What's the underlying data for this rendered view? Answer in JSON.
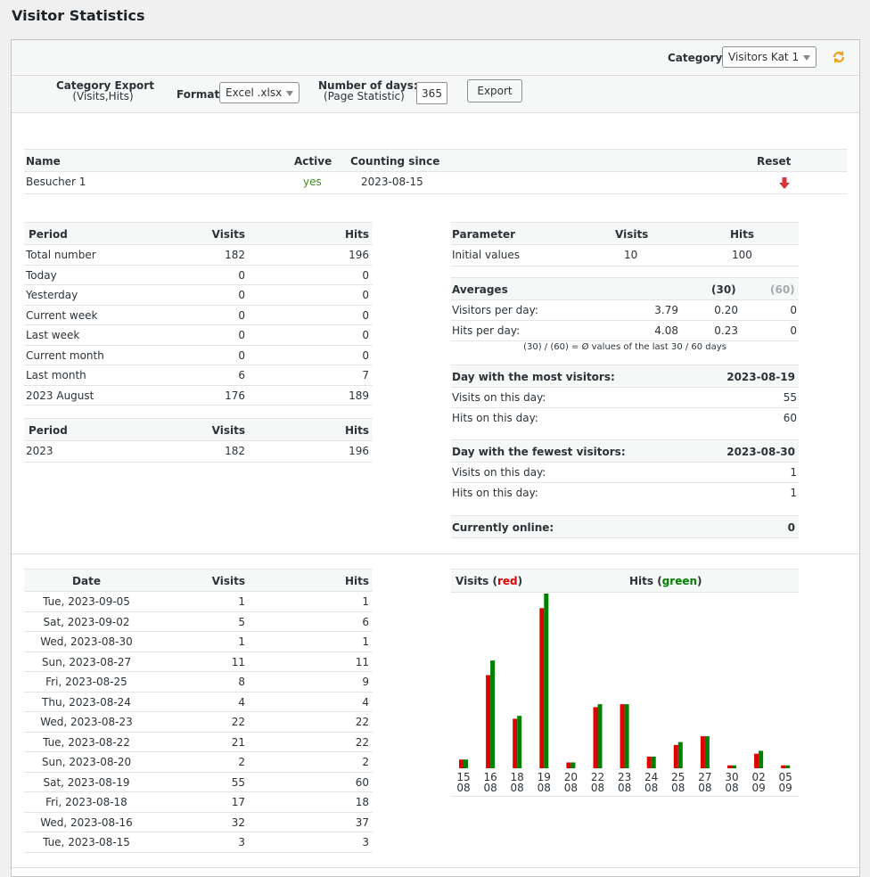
{
  "page": {
    "title": "Visitor Statistics"
  },
  "toolbar": {
    "category_label": "Category:",
    "category_value": "Visitors Kat 1",
    "export_title_line1": "Category Export",
    "export_title_line2": "(Visits,Hits)",
    "format_label": "Format:",
    "format_value": "Excel .xlsx",
    "days_label_line1": "Number of days:",
    "days_label_line2": "(Page Statistic)",
    "days_value": "365",
    "export_button": "Export"
  },
  "counter_table": {
    "headers": {
      "name": "Name",
      "active": "Active",
      "since": "Counting since",
      "reset": "Reset"
    },
    "row": {
      "name": "Besucher 1",
      "active": "yes",
      "since": "2023-08-15"
    }
  },
  "period_table": {
    "headers": {
      "period": "Period",
      "visits": "Visits",
      "hits": "Hits"
    },
    "rows": [
      {
        "period": "Total number",
        "visits": "182",
        "hits": "196"
      },
      {
        "period": "Today",
        "visits": "0",
        "hits": "0"
      },
      {
        "period": "Yesterday",
        "visits": "0",
        "hits": "0"
      },
      {
        "period": "Current week",
        "visits": "0",
        "hits": "0"
      },
      {
        "period": "Last week",
        "visits": "0",
        "hits": "0"
      },
      {
        "period": "Current month",
        "visits": "0",
        "hits": "0"
      },
      {
        "period": "Last month",
        "visits": "6",
        "hits": "7"
      },
      {
        "period": "2023 August",
        "visits": "176",
        "hits": "189"
      }
    ]
  },
  "year_table": {
    "headers": {
      "period": "Period",
      "visits": "Visits",
      "hits": "Hits"
    },
    "rows": [
      {
        "period": "2023",
        "visits": "182",
        "hits": "196"
      }
    ]
  },
  "param_table": {
    "headers": {
      "parameter": "Parameter",
      "visits": "Visits",
      "hits": "Hits"
    },
    "initial": {
      "label": "Initial values",
      "visits": "10",
      "hits": "100"
    },
    "averages": {
      "label": "Averages",
      "col30": "(30)",
      "col60": "(60)",
      "rows": [
        {
          "label": "Visitors per day:",
          "all": "3.79",
          "d30": "0.20",
          "d60": "0"
        },
        {
          "label": "Hits per day:",
          "all": "4.08",
          "d30": "0.23",
          "d60": "0"
        }
      ],
      "note": "(30) / (60) = Ø values of the last 30 / 60 days"
    },
    "most": {
      "label": "Day with the most visitors:",
      "date": "2023-08-19",
      "visits_label": "Visits on this day:",
      "visits": "55",
      "hits_label": "Hits on this day:",
      "hits": "60"
    },
    "fewest": {
      "label": "Day with the fewest visitors:",
      "date": "2023-08-30",
      "visits_label": "Visits on this day:",
      "visits": "1",
      "hits_label": "Hits on this day:",
      "hits": "1"
    },
    "online": {
      "label": "Currently online:",
      "value": "0"
    }
  },
  "daily_table": {
    "headers": {
      "date": "Date",
      "visits": "Visits",
      "hits": "Hits"
    },
    "rows": [
      {
        "date": "Tue, 2023-09-05",
        "visits": "1",
        "hits": "1"
      },
      {
        "date": "Sat, 2023-09-02",
        "visits": "5",
        "hits": "6"
      },
      {
        "date": "Wed, 2023-08-30",
        "visits": "1",
        "hits": "1"
      },
      {
        "date": "Sun, 2023-08-27",
        "visits": "11",
        "hits": "11"
      },
      {
        "date": "Fri, 2023-08-25",
        "visits": "8",
        "hits": "9"
      },
      {
        "date": "Thu, 2023-08-24",
        "visits": "4",
        "hits": "4"
      },
      {
        "date": "Wed, 2023-08-23",
        "visits": "22",
        "hits": "22"
      },
      {
        "date": "Tue, 2023-08-22",
        "visits": "21",
        "hits": "22"
      },
      {
        "date": "Sun, 2023-08-20",
        "visits": "2",
        "hits": "2"
      },
      {
        "date": "Sat, 2023-08-19",
        "visits": "55",
        "hits": "60"
      },
      {
        "date": "Fri, 2023-08-18",
        "visits": "17",
        "hits": "18"
      },
      {
        "date": "Wed, 2023-08-16",
        "visits": "32",
        "hits": "37"
      },
      {
        "date": "Tue, 2023-08-15",
        "visits": "3",
        "hits": "3"
      }
    ]
  },
  "chart_data": {
    "type": "bar",
    "legend_visits_prefix": "Visits (",
    "legend_visits_color_word": "red",
    "legend_hits_prefix": "Hits (",
    "legend_hits_color_word": "green",
    "legend_suffix": ")",
    "colors": {
      "visits": "#e00000",
      "hits": "#008000"
    },
    "categories": [
      [
        "15",
        "08"
      ],
      [
        "16",
        "08"
      ],
      [
        "18",
        "08"
      ],
      [
        "19",
        "08"
      ],
      [
        "20",
        "08"
      ],
      [
        "22",
        "08"
      ],
      [
        "23",
        "08"
      ],
      [
        "24",
        "08"
      ],
      [
        "25",
        "08"
      ],
      [
        "27",
        "08"
      ],
      [
        "30",
        "08"
      ],
      [
        "02",
        "09"
      ],
      [
        "05",
        "09"
      ]
    ],
    "series": [
      {
        "name": "Visits",
        "values": [
          3,
          32,
          17,
          55,
          2,
          21,
          22,
          4,
          8,
          11,
          1,
          5,
          1
        ]
      },
      {
        "name": "Hits",
        "values": [
          3,
          37,
          18,
          60,
          2,
          22,
          22,
          4,
          9,
          11,
          1,
          6,
          1
        ]
      }
    ]
  },
  "colors": {
    "accent_orange": "#f0a020",
    "active_green": "#3e8e1f",
    "reset_red": "#d63638"
  }
}
